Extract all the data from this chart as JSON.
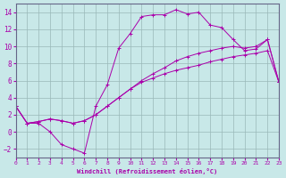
{
  "xlabel": "Windchill (Refroidissement éolien,°C)",
  "background_color": "#c8e8e8",
  "grid_color": "#9ab8b8",
  "line_color": "#aa00aa",
  "xlim": [
    0,
    23
  ],
  "ylim": [
    -3,
    15
  ],
  "xticks": [
    0,
    1,
    2,
    3,
    4,
    5,
    6,
    7,
    8,
    9,
    10,
    11,
    12,
    13,
    14,
    15,
    16,
    17,
    18,
    19,
    20,
    21,
    22,
    23
  ],
  "yticks": [
    -2,
    0,
    2,
    4,
    6,
    8,
    10,
    12,
    14
  ],
  "line1_x": [
    0,
    1,
    2,
    3,
    4,
    5,
    6,
    7,
    8,
    9,
    10,
    11,
    12,
    13,
    14,
    15,
    16,
    17,
    18,
    19,
    20,
    21,
    22,
    23
  ],
  "line1_y": [
    3,
    1,
    1,
    0,
    -1.5,
    -2,
    -2.5,
    3,
    5.5,
    9.8,
    11.5,
    13.5,
    13.7,
    13.7,
    14.3,
    13.8,
    14.0,
    12.5,
    12.2,
    10.8,
    9.5,
    9.7,
    10.8,
    5.8
  ],
  "line2_x": [
    0,
    1,
    2,
    3,
    4,
    5,
    6,
    7,
    8,
    9,
    10,
    11,
    12,
    13,
    14,
    15,
    16,
    17,
    18,
    19,
    20,
    21,
    22,
    23
  ],
  "line2_y": [
    3,
    1.0,
    1.2,
    1.5,
    1.3,
    1.0,
    1.3,
    2.0,
    3.0,
    4.0,
    5.0,
    6.0,
    6.8,
    7.5,
    8.3,
    8.8,
    9.2,
    9.5,
    9.8,
    10.0,
    9.8,
    10.0,
    10.8,
    5.8
  ],
  "line3_x": [
    0,
    1,
    2,
    3,
    4,
    5,
    6,
    7,
    8,
    9,
    10,
    11,
    12,
    13,
    14,
    15,
    16,
    17,
    18,
    19,
    20,
    21,
    22,
    23
  ],
  "line3_y": [
    3,
    1.0,
    1.2,
    1.5,
    1.3,
    1.0,
    1.3,
    2.0,
    3.0,
    4.0,
    5.0,
    5.8,
    6.3,
    6.8,
    7.2,
    7.5,
    7.8,
    8.2,
    8.5,
    8.8,
    9.0,
    9.2,
    9.5,
    5.8
  ]
}
